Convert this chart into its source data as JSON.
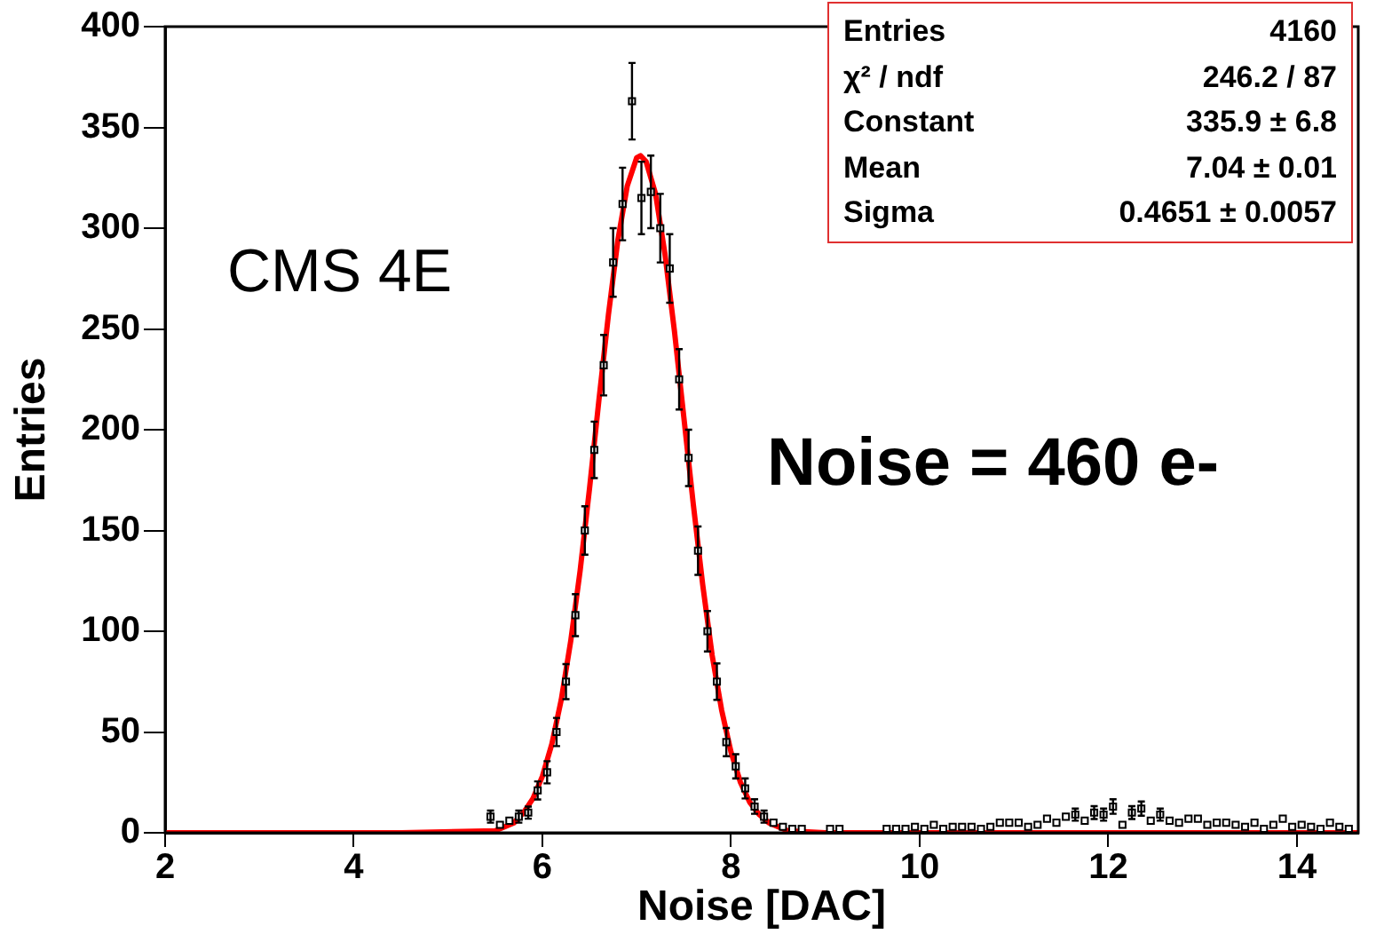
{
  "chart_data": {
    "type": "scatter",
    "xlabel": "Noise [DAC]",
    "ylabel": "Entries",
    "xlim": [
      2,
      14.65
    ],
    "xticks": [
      2,
      4,
      6,
      8,
      10,
      12,
      14
    ],
    "ylim": [
      0,
      400
    ],
    "yticks": [
      0,
      50,
      100,
      150,
      200,
      250,
      300,
      350,
      400
    ],
    "grid": false,
    "legend": false,
    "annotations": [
      "Entries",
      "4160",
      "χ² / ndf",
      "246.2 / 87",
      "Constant",
      "335.9 ± 6.8",
      "Mean",
      "7.04 ± 0.01",
      "Sigma",
      "0.4651 ± 0.0057",
      "CMS 4E",
      "Noise = 460 e-"
    ],
    "series": [
      {
        "color": "#000000",
        "marker": "square",
        "x": [
          5.45,
          5.55,
          5.65,
          5.75,
          5.85,
          5.95,
          6.05,
          6.15,
          6.25,
          6.35,
          6.45,
          6.55,
          6.65,
          6.75,
          6.85,
          6.95,
          7.05,
          7.15,
          7.25,
          7.35,
          7.45,
          7.55,
          7.65,
          7.75,
          7.85,
          7.95,
          8.05,
          8.15,
          8.25,
          8.35,
          8.45,
          8.55,
          8.65,
          8.75,
          9.05,
          9.15,
          9.65,
          9.75,
          9.85,
          9.95,
          10.05,
          10.15,
          10.25,
          10.35,
          10.45,
          10.55,
          10.65,
          10.75,
          10.85,
          10.95,
          11.05,
          11.15,
          11.25,
          11.35,
          11.45,
          11.55,
          11.65,
          11.75,
          11.85,
          11.95,
          12.05,
          12.15,
          12.25,
          12.35,
          12.45,
          12.55,
          12.65,
          12.75,
          12.85,
          12.95,
          13.05,
          13.15,
          13.25,
          13.35,
          13.45,
          13.55,
          13.65,
          13.75,
          13.85,
          13.95,
          14.05,
          14.15,
          14.25,
          14.35,
          14.45,
          14.55
        ],
        "values": [
          8,
          4,
          6,
          8,
          10,
          21,
          30,
          50,
          75,
          108,
          150,
          190,
          232,
          283,
          312,
          363,
          315,
          318,
          300,
          280,
          225,
          186,
          140,
          100,
          75,
          45,
          33,
          22,
          13,
          8,
          5,
          3,
          2,
          2,
          2,
          2,
          2,
          2,
          2,
          3,
          2,
          4,
          2,
          3,
          3,
          3,
          2,
          3,
          5,
          5,
          5,
          3,
          4,
          7,
          5,
          8,
          9,
          6,
          10,
          9,
          13,
          4,
          10,
          12,
          6,
          9,
          6,
          5,
          7,
          7,
          4,
          5,
          5,
          4,
          3,
          5,
          2,
          4,
          7,
          3,
          4,
          3,
          2,
          5,
          3,
          2
        ],
        "errors": [
          3,
          null,
          null,
          3,
          3,
          4.5,
          5.5,
          7,
          8.7,
          10.4,
          12,
          14,
          15,
          17,
          18,
          19,
          18,
          18,
          17,
          17,
          15,
          14,
          12,
          10,
          9,
          7,
          6,
          5,
          3.6,
          3,
          null,
          null,
          null,
          null,
          null,
          null,
          null,
          null,
          null,
          null,
          null,
          null,
          null,
          null,
          null,
          null,
          null,
          null,
          null,
          null,
          null,
          null,
          null,
          null,
          null,
          null,
          3,
          null,
          3.2,
          3,
          3.6,
          null,
          3.2,
          3.5,
          null,
          3,
          null,
          null,
          null,
          null,
          null,
          null,
          null,
          null,
          null,
          null,
          null,
          null,
          null,
          null,
          null,
          null,
          null,
          null,
          null,
          null
        ]
      },
      {
        "type": "line",
        "color": "#ff0000",
        "x": [
          2,
          4.5,
          5.5,
          5.6,
          5.7,
          5.8,
          5.9,
          6.0,
          6.1,
          6.2,
          6.3,
          6.4,
          6.5,
          6.6,
          6.7,
          6.8,
          6.9,
          7.0,
          7.04,
          7.1,
          7.2,
          7.3,
          7.4,
          7.5,
          7.6,
          7.7,
          7.8,
          7.9,
          8.0,
          8.1,
          8.2,
          8.3,
          8.4,
          8.6,
          9.0,
          14.65
        ],
        "values": [
          0,
          0,
          1,
          3,
          5,
          10,
          17,
          28,
          44,
          66,
          95,
          130,
          171,
          215,
          257,
          294,
          321,
          335,
          336,
          333,
          317,
          287,
          249,
          206,
          163,
          123,
          88,
          61,
          40,
          25,
          15,
          9,
          5,
          1,
          0,
          0
        ]
      }
    ]
  }
}
